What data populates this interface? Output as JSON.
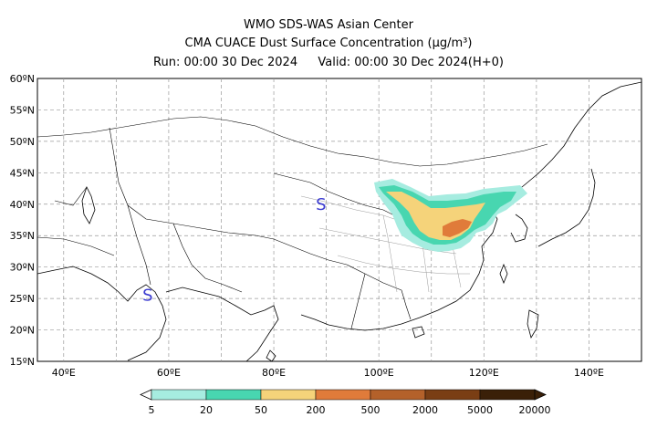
{
  "header": {
    "line1": "WMO SDS-WAS Asian Center",
    "line2": "CMA CUACE Dust Surface Concentration (μg/m³)",
    "run": "Run: 00:00 30 Dec 2024",
    "valid": "Valid: 00:00 30 Dec 2024(H+0)"
  },
  "map": {
    "lat_labels": [
      "60ºN",
      "55ºN",
      "50ºN",
      "45ºN",
      "40ºN",
      "35ºN",
      "30ºN",
      "25ºN",
      "20ºN",
      "15ºN"
    ],
    "lon_labels": [
      "40ºE",
      "60ºE",
      "80ºE",
      "100ºE",
      "120ºE",
      "140ºE"
    ],
    "markers": [
      {
        "label": "S",
        "lon": 89,
        "lat": 40
      },
      {
        "label": "S",
        "lon": 56,
        "lat": 25.5
      }
    ],
    "gridlines": true
  },
  "colorbar": {
    "labels": [
      "5",
      "20",
      "50",
      "200",
      "500",
      "2000",
      "5000",
      "20000"
    ],
    "colors": [
      "#a6ece0",
      "#48d6b0",
      "#f5d37a",
      "#e07b3a",
      "#b4612a",
      "#7a3e14",
      "#3a2008"
    ]
  }
}
